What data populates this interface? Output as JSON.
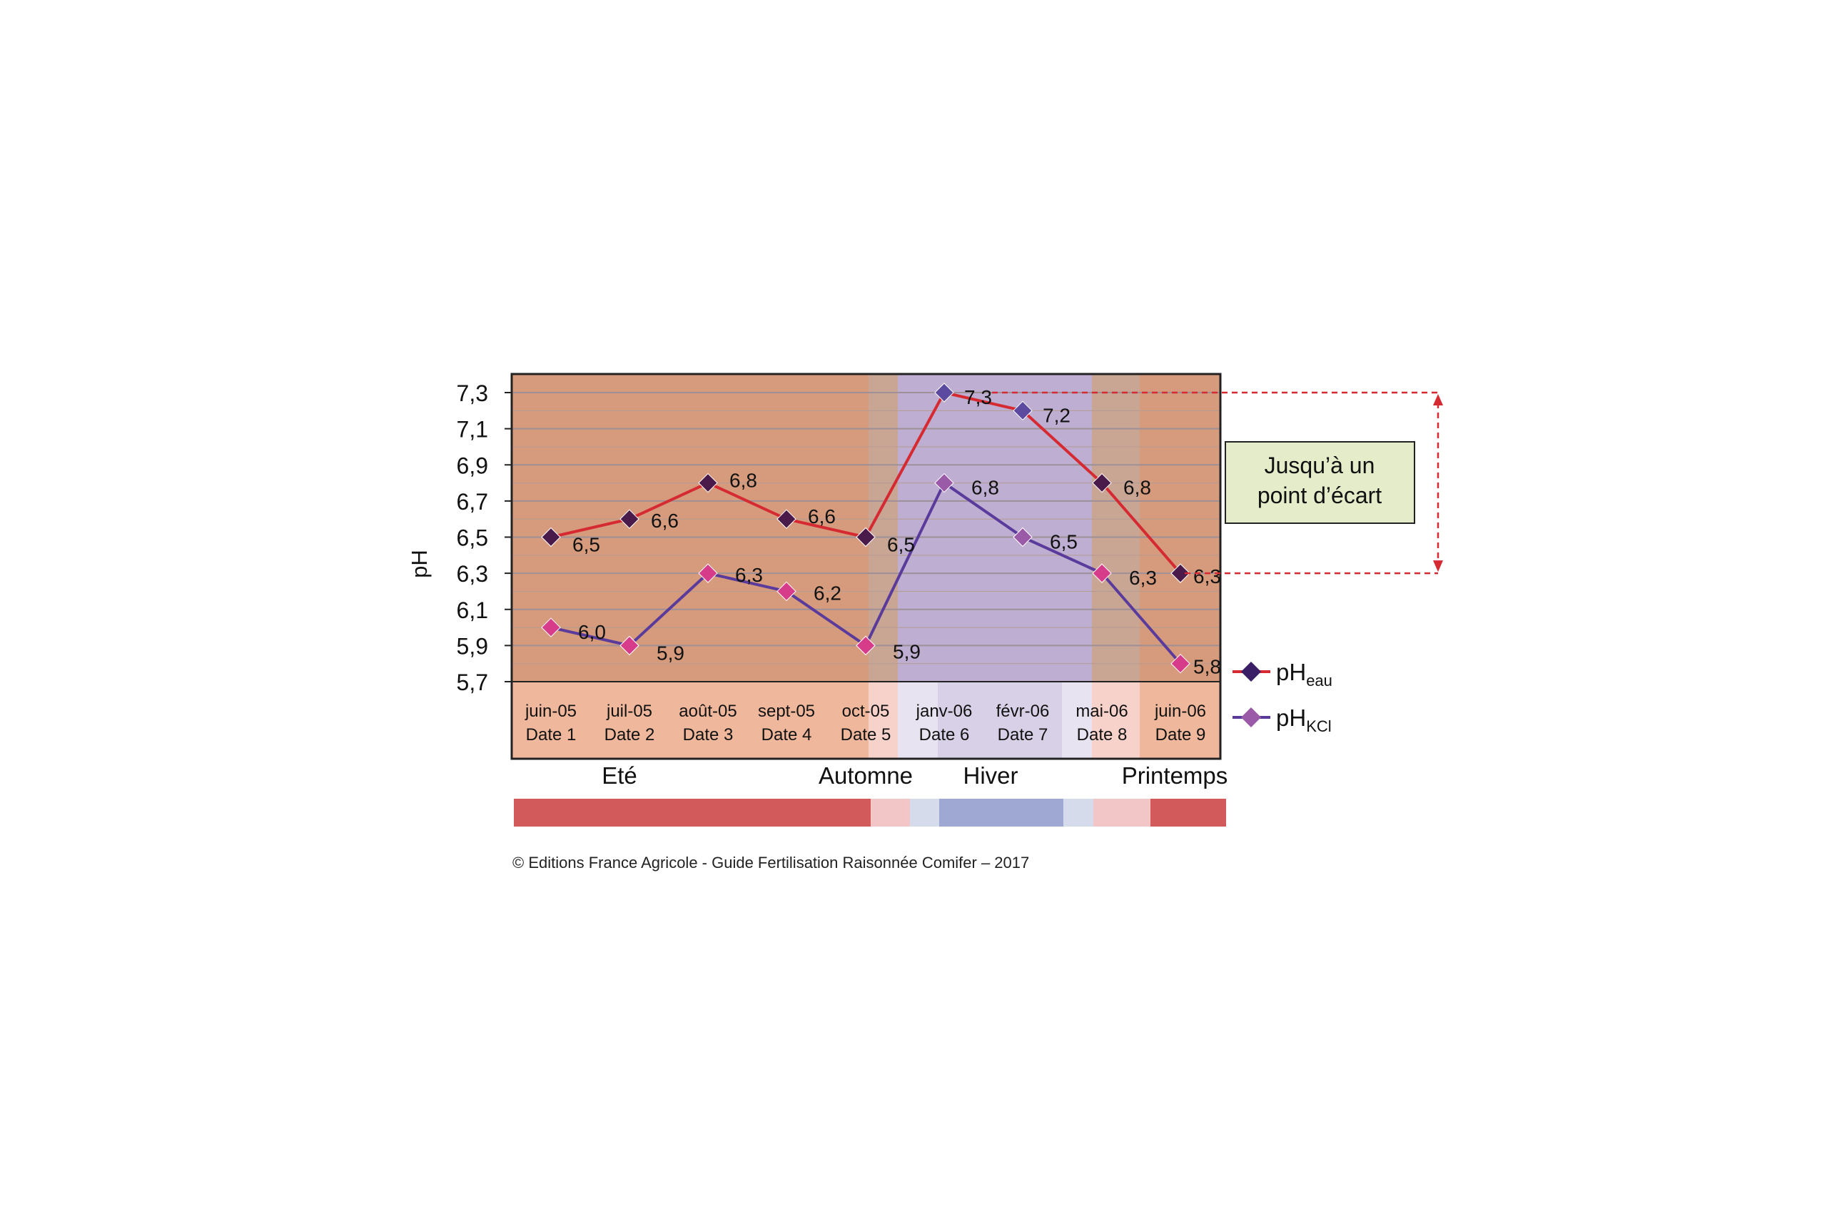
{
  "chart_data": {
    "type": "line",
    "ylabel": "pH",
    "ylim": [
      5.7,
      7.3
    ],
    "yticks": [
      "7,3",
      "7,1",
      "6,9",
      "6,7",
      "6,5",
      "6,3",
      "6,1",
      "5,9",
      "5,7"
    ],
    "ytick_values": [
      7.3,
      7.1,
      6.9,
      6.7,
      6.5,
      6.3,
      6.1,
      5.9,
      5.7
    ],
    "grid": true,
    "legend_position": "bottom-right",
    "categories": [
      {
        "month": "juin-05",
        "date": "Date 1"
      },
      {
        "month": "juil-05",
        "date": "Date 2"
      },
      {
        "month": "août-05",
        "date": "Date 3"
      },
      {
        "month": "sept-05",
        "date": "Date 4"
      },
      {
        "month": "oct-05",
        "date": "Date 5"
      },
      {
        "month": "janv-06",
        "date": "Date 6"
      },
      {
        "month": "févr-06",
        "date": "Date 7"
      },
      {
        "month": "mai-06",
        "date": "Date 8"
      },
      {
        "month": "juin-06",
        "date": "Date 9"
      }
    ],
    "series": [
      {
        "name": "pH",
        "subscript": "eau",
        "line_color": "#d62a32",
        "marker_color": "#4a1a4a",
        "marker_color_winter": "#5b4aa0",
        "values": [
          6.5,
          6.6,
          6.8,
          6.6,
          6.5,
          7.3,
          7.2,
          6.8,
          6.3
        ],
        "labels": [
          "6,5",
          "6,6",
          "6,8",
          "6,6",
          "6,5",
          "7,3",
          "7,2",
          "6,8",
          "6,3"
        ]
      },
      {
        "name": "pH",
        "subscript": "KCl",
        "line_color": "#5a3b9b",
        "marker_color": "#d63c8a",
        "marker_color_winter": "#9a5aa8",
        "values": [
          6.0,
          5.9,
          6.3,
          6.2,
          5.9,
          6.8,
          6.5,
          6.3,
          5.8
        ],
        "labels": [
          "6,0",
          "5,9",
          "6,3",
          "6,2",
          "5,9",
          "6,8",
          "6,5",
          "6,3",
          "5,8"
        ]
      }
    ],
    "seasons": [
      "Eté",
      "Automne",
      "Hiver",
      "Printemps"
    ],
    "annotation": {
      "line1": "Jusqu’à un",
      "line2": "point d’écart",
      "from_value": 7.3,
      "to_value": 6.3
    },
    "colors": {
      "summer_bg": "#d69b7c",
      "transition_bg": "#c9a594",
      "winter_bg": "#bdaed2",
      "summer_band": "#d35a5a",
      "light_pink_band": "#f2c6c6",
      "light_blue_band": "#d6dbec",
      "winter_band": "#9ea8d2",
      "annotation_bg": "#e4ecca",
      "annotation_arrow": "#d62a32"
    }
  },
  "credit": "© Editions France Agricole - Guide Fertilisation Raisonnée Comifer – 2017"
}
